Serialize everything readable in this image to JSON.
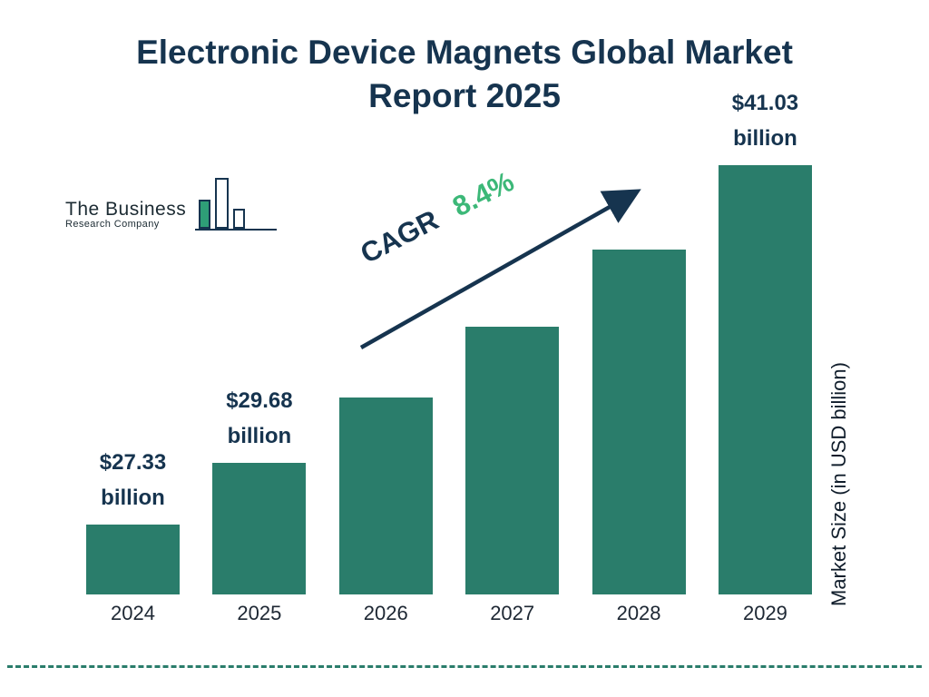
{
  "title": {
    "line1": "Electronic Device Magnets Global Market",
    "line2": "Report 2025"
  },
  "logo": {
    "line1": "The Business",
    "line2": "Research Company"
  },
  "cagr": {
    "label": "CAGR",
    "value": "8.4%"
  },
  "axis": {
    "y_label": "Market Size (in USD billion)"
  },
  "colors": {
    "bar": "#2a7d6b",
    "title_navy": "#16344f",
    "cagr_green": "#3cb878",
    "dashed_rule": "#2a7d6b"
  },
  "chart_data": {
    "type": "bar",
    "title": "Electronic Device Magnets Global Market Report 2025",
    "categories": [
      "2024",
      "2025",
      "2026",
      "2027",
      "2028",
      "2029"
    ],
    "values": [
      27.33,
      29.68,
      32.17,
      34.88,
      37.82,
      41.03
    ],
    "value_labels": [
      "$27.33 billion",
      "$29.68 billion",
      "",
      "",
      "",
      "$41.03 billion"
    ],
    "cagr_percent": 8.4,
    "xlabel": "",
    "ylabel": "Market Size (in USD billion)",
    "legend": "none",
    "grid": false
  }
}
